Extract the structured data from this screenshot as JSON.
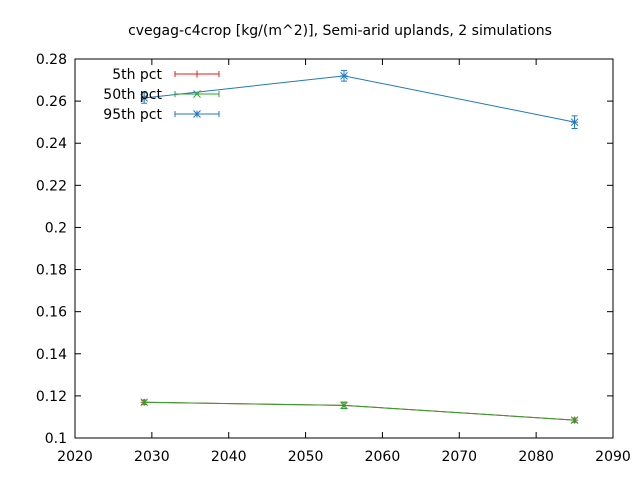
{
  "chart_data": {
    "type": "line",
    "title": "cvegag-c4crop [kg/(m^2)], Semi-arid uplands, 2 simulations",
    "xlabel": "",
    "ylabel": "",
    "xlim": [
      2020,
      2090
    ],
    "ylim": [
      0.1,
      0.28
    ],
    "grid": false,
    "legend_position": "top-left",
    "x_ticks": [
      2020,
      2030,
      2040,
      2050,
      2060,
      2070,
      2080,
      2090
    ],
    "x_tick_labels": [
      "2020",
      "2030",
      "2040",
      "2050",
      "2060",
      "2070",
      "2080",
      "2090"
    ],
    "y_ticks": [
      0.1,
      0.12,
      0.14,
      0.16,
      0.18,
      0.2,
      0.22,
      0.24,
      0.26,
      0.28
    ],
    "y_tick_labels": [
      "0.1",
      "0.12",
      "0.14",
      "0.16",
      "0.18",
      "0.2",
      "0.22",
      "0.24",
      "0.26",
      "0.28"
    ],
    "x": [
      2029,
      2055,
      2085
    ],
    "series": [
      {
        "name": "5th pct",
        "color": "#e41a1c",
        "marker": "plus",
        "values": [
          0.117,
          0.1155,
          0.1085
        ],
        "err_low": [
          0.116,
          0.114,
          0.1075
        ],
        "err_high": [
          0.118,
          0.117,
          0.1095
        ]
      },
      {
        "name": "50th pct",
        "color": "#2ca02c",
        "marker": "x",
        "values": [
          0.117,
          0.1155,
          0.1085
        ],
        "err_low": [
          0.116,
          0.114,
          0.1075
        ],
        "err_high": [
          0.118,
          0.117,
          0.1095
        ]
      },
      {
        "name": "95th pct",
        "color": "#1f78c1",
        "marker": "star",
        "values": [
          0.2615,
          0.272,
          0.25
        ],
        "err_low": [
          0.259,
          0.2695,
          0.247
        ],
        "err_high": [
          0.264,
          0.2745,
          0.253
        ]
      }
    ]
  }
}
